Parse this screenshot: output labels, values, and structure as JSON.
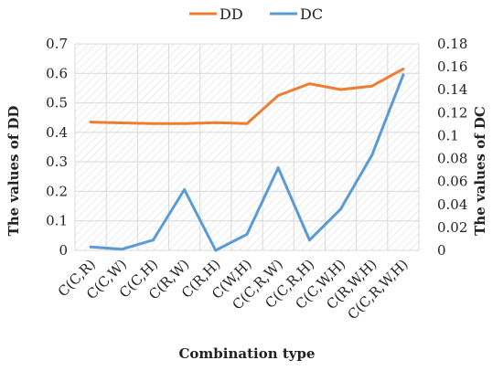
{
  "chart_data": {
    "type": "line",
    "title": "",
    "xlabel": "Combination type",
    "ylabel_left": "The values  of DD",
    "ylabel_right": "The values of DC",
    "categories": [
      "C(C,R)",
      "C(C,W)",
      "C(C,H)",
      "C(R,W)",
      "C(R,H)",
      "C(W,H)",
      "C(C,R,W)",
      "C(C,R,H)",
      "C(C,W,H)",
      "C(R,W,H)",
      "C(C,R,W,H)"
    ],
    "ylim_left": [
      0,
      0.7
    ],
    "ylim_right": [
      0,
      0.18
    ],
    "yticks_left": [
      "0",
      "0.1",
      "0.2",
      "0.3",
      "0.4",
      "0.5",
      "0.6",
      "0.7"
    ],
    "yticks_right": [
      "0",
      "0.02",
      "0.04",
      "0.06",
      "0.08",
      "0.1",
      "0.12",
      "0.14",
      "0.16",
      "0.18"
    ],
    "grid": true,
    "legend_position": "top-center",
    "series": [
      {
        "name": "DD",
        "axis": "left",
        "color": "#ED7D31",
        "values": [
          0.435,
          0.432,
          0.43,
          0.43,
          0.433,
          0.43,
          0.525,
          0.565,
          0.545,
          0.557,
          0.615
        ]
      },
      {
        "name": "DC",
        "axis": "right",
        "color": "#5B9BD5",
        "values": [
          0.003,
          0.001,
          0.009,
          0.053,
          0.0,
          0.014,
          0.072,
          0.009,
          0.036,
          0.083,
          0.153
        ]
      }
    ]
  }
}
